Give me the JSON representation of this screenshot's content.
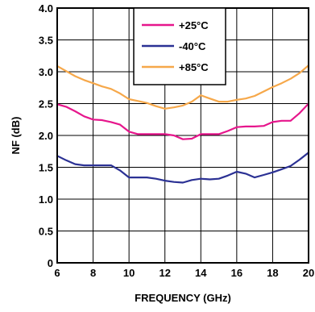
{
  "chart_data": {
    "type": "line",
    "title": "",
    "xlabel": "FREQUENCY (GHz)",
    "ylabel": "NF (dB)",
    "xlim": [
      6,
      20
    ],
    "ylim": [
      0,
      4.0
    ],
    "x_ticks": [
      "6",
      "8",
      "10",
      "12",
      "14",
      "16",
      "18",
      "20"
    ],
    "y_ticks": [
      "0",
      "0.5",
      "1.0",
      "1.5",
      "2.0",
      "2.5",
      "3.0",
      "3.5",
      "4.0"
    ],
    "grid": true,
    "legend_position": "top-center",
    "series": [
      {
        "name": "+25°C",
        "color": "#e6168c",
        "x": [
          6,
          6.5,
          7,
          7.5,
          8,
          8.5,
          9,
          9.5,
          10,
          10.5,
          11,
          11.5,
          12,
          12.5,
          13,
          13.5,
          14,
          14.5,
          15,
          15.5,
          16,
          16.5,
          17,
          17.5,
          18,
          18.5,
          19,
          19.5,
          20
        ],
        "values": [
          2.49,
          2.45,
          2.38,
          2.3,
          2.25,
          2.24,
          2.21,
          2.17,
          2.06,
          2.02,
          2.02,
          2.02,
          2.02,
          2.0,
          1.94,
          1.95,
          2.02,
          2.02,
          2.02,
          2.07,
          2.13,
          2.14,
          2.14,
          2.15,
          2.21,
          2.23,
          2.23,
          2.35,
          2.5
        ]
      },
      {
        "name": "-40°C",
        "color": "#2b3194",
        "x": [
          6,
          6.5,
          7,
          7.5,
          8,
          8.5,
          9,
          9.5,
          10,
          10.5,
          11,
          11.5,
          12,
          12.5,
          13,
          13.5,
          14,
          14.5,
          15,
          15.5,
          16,
          16.5,
          17,
          17.5,
          18,
          18.5,
          19,
          19.5,
          20
        ],
        "values": [
          1.68,
          1.61,
          1.55,
          1.53,
          1.53,
          1.53,
          1.53,
          1.45,
          1.34,
          1.34,
          1.34,
          1.32,
          1.29,
          1.27,
          1.26,
          1.3,
          1.32,
          1.31,
          1.32,
          1.37,
          1.43,
          1.4,
          1.34,
          1.38,
          1.42,
          1.47,
          1.52,
          1.62,
          1.73
        ]
      },
      {
        "name": "+85°C",
        "color": "#f6a84a",
        "x": [
          6,
          6.5,
          7,
          7.5,
          8,
          8.5,
          9,
          9.5,
          10,
          10.5,
          11,
          11.5,
          12,
          12.5,
          13,
          13.5,
          14,
          14.5,
          15,
          15.5,
          16,
          16.5,
          17,
          17.5,
          18,
          18.5,
          19,
          19.5,
          20
        ],
        "values": [
          3.09,
          3.01,
          2.93,
          2.87,
          2.82,
          2.77,
          2.73,
          2.66,
          2.57,
          2.54,
          2.51,
          2.46,
          2.42,
          2.44,
          2.47,
          2.53,
          2.63,
          2.58,
          2.53,
          2.53,
          2.56,
          2.58,
          2.62,
          2.69,
          2.76,
          2.82,
          2.89,
          2.98,
          3.1
        ]
      }
    ]
  }
}
